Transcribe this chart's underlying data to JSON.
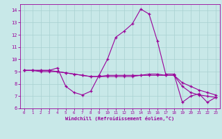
{
  "xlabel": "Windchill (Refroidissement éolien,°C)",
  "xlim": [
    -0.5,
    23.5
  ],
  "ylim": [
    6,
    14.5
  ],
  "xticks": [
    0,
    1,
    2,
    3,
    4,
    5,
    6,
    7,
    8,
    9,
    10,
    11,
    12,
    13,
    14,
    15,
    16,
    17,
    18,
    19,
    20,
    21,
    22,
    23
  ],
  "yticks": [
    6,
    7,
    8,
    9,
    10,
    11,
    12,
    13,
    14
  ],
  "bg_color": "#c8e8e8",
  "line_color": "#990099",
  "grid_color": "#a8d0d0",
  "curve1_x": [
    0,
    1,
    2,
    3,
    4,
    5,
    6,
    7,
    8,
    9,
    10,
    11,
    12,
    13,
    14,
    15,
    16,
    17,
    18,
    19,
    20,
    21,
    22,
    23
  ],
  "curve1_y": [
    9.1,
    9.1,
    9.1,
    9.1,
    9.3,
    7.8,
    7.3,
    7.1,
    7.4,
    8.7,
    10.0,
    11.8,
    12.3,
    12.9,
    14.1,
    13.7,
    11.5,
    8.8,
    8.8,
    6.5,
    7.0,
    7.2,
    6.5,
    6.9
  ],
  "curve2_x": [
    0,
    1,
    2,
    3,
    4,
    5,
    6,
    7,
    8,
    9,
    10,
    11,
    12,
    13,
    14,
    15,
    16,
    17,
    18,
    19,
    20,
    21,
    22,
    23
  ],
  "curve2_y": [
    9.1,
    9.1,
    9.0,
    9.0,
    9.0,
    8.9,
    8.8,
    8.7,
    8.6,
    8.6,
    8.7,
    8.7,
    8.7,
    8.7,
    8.7,
    8.7,
    8.7,
    8.7,
    8.7,
    7.8,
    7.3,
    7.1,
    7.0,
    6.9
  ],
  "curve3_x": [
    0,
    1,
    2,
    3,
    4,
    5,
    6,
    7,
    8,
    9,
    10,
    11,
    12,
    13,
    14,
    15,
    16,
    17,
    18,
    19,
    20,
    21,
    22,
    23
  ],
  "curve3_y": [
    9.1,
    9.1,
    9.1,
    9.1,
    9.0,
    8.9,
    8.8,
    8.7,
    8.6,
    8.6,
    8.6,
    8.6,
    8.6,
    8.6,
    8.7,
    8.8,
    8.8,
    8.7,
    8.7,
    8.1,
    7.8,
    7.5,
    7.3,
    7.1
  ]
}
